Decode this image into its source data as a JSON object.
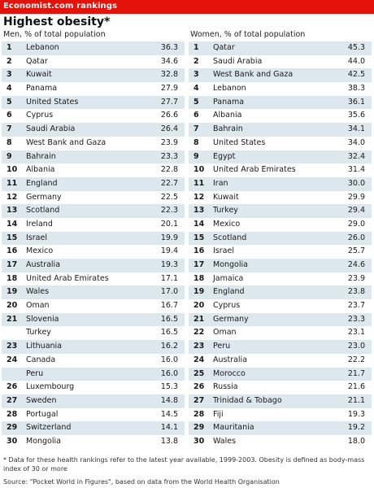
{
  "header": {
    "banner": "Economist.com rankings",
    "title": "Highest obesity*"
  },
  "men": {
    "subtitle": "Men, % of total population",
    "rows": [
      {
        "rank": "1",
        "country": "Lebanon",
        "value": "36.3"
      },
      {
        "rank": "2",
        "country": "Qatar",
        "value": "34.6"
      },
      {
        "rank": "3",
        "country": "Kuwait",
        "value": "32.8"
      },
      {
        "rank": "4",
        "country": "Panama",
        "value": "27.9"
      },
      {
        "rank": "5",
        "country": "United States",
        "value": "27.7"
      },
      {
        "rank": "6",
        "country": "Cyprus",
        "value": "26.6"
      },
      {
        "rank": "7",
        "country": "Saudi Arabia",
        "value": "26.4"
      },
      {
        "rank": "8",
        "country": "West Bank and Gaza",
        "value": "23.9"
      },
      {
        "rank": "9",
        "country": "Bahrain",
        "value": "23.3"
      },
      {
        "rank": "10",
        "country": "Albania",
        "value": "22.8"
      },
      {
        "rank": "11",
        "country": "England",
        "value": "22.7"
      },
      {
        "rank": "12",
        "country": "Germany",
        "value": "22.5"
      },
      {
        "rank": "13",
        "country": "Scotland",
        "value": "22.3"
      },
      {
        "rank": "14",
        "country": "Ireland",
        "value": "20.1"
      },
      {
        "rank": "15",
        "country": "Israel",
        "value": "19.9"
      },
      {
        "rank": "16",
        "country": "Mexico",
        "value": "19.4"
      },
      {
        "rank": "17",
        "country": "Australia",
        "value": "19.3"
      },
      {
        "rank": "18",
        "country": "United Arab Emirates",
        "value": "17.1"
      },
      {
        "rank": "19",
        "country": "Wales",
        "value": "17.0"
      },
      {
        "rank": "20",
        "country": "Oman",
        "value": "16.7"
      },
      {
        "rank": "21",
        "country": "Slovenia",
        "value": "16.5"
      },
      {
        "rank": "",
        "country": "Turkey",
        "value": "16.5"
      },
      {
        "rank": "23",
        "country": "Lithuania",
        "value": "16.2"
      },
      {
        "rank": "24",
        "country": "Canada",
        "value": "16.0"
      },
      {
        "rank": "",
        "country": "Peru",
        "value": "16.0"
      },
      {
        "rank": "26",
        "country": "Luxembourg",
        "value": "15.3"
      },
      {
        "rank": "27",
        "country": "Sweden",
        "value": "14.8"
      },
      {
        "rank": "28",
        "country": "Portugal",
        "value": "14.5"
      },
      {
        "rank": "29",
        "country": "Switzerland",
        "value": "14.1"
      },
      {
        "rank": "30",
        "country": "Mongolia",
        "value": "13.8"
      }
    ]
  },
  "women": {
    "subtitle": "Women, % of total population",
    "rows": [
      {
        "rank": "1",
        "country": "Qatar",
        "value": "45.3"
      },
      {
        "rank": "2",
        "country": "Saudi Arabia",
        "value": "44.0"
      },
      {
        "rank": "3",
        "country": "West Bank and Gaza",
        "value": "42.5"
      },
      {
        "rank": "4",
        "country": "Lebanon",
        "value": "38.3"
      },
      {
        "rank": "5",
        "country": "Panama",
        "value": "36.1"
      },
      {
        "rank": "6",
        "country": "Albania",
        "value": "35.6"
      },
      {
        "rank": "7",
        "country": "Bahrain",
        "value": "34.1"
      },
      {
        "rank": "8",
        "country": "United States",
        "value": "34.0"
      },
      {
        "rank": "9",
        "country": "Egypt",
        "value": "32.4"
      },
      {
        "rank": "10",
        "country": "United Arab Emirates",
        "value": "31.4"
      },
      {
        "rank": "11",
        "country": "Iran",
        "value": "30.0"
      },
      {
        "rank": "12",
        "country": "Kuwait",
        "value": "29.9"
      },
      {
        "rank": "13",
        "country": "Turkey",
        "value": "29.4"
      },
      {
        "rank": "14",
        "country": "Mexico",
        "value": "29.0"
      },
      {
        "rank": "15",
        "country": "Scotland",
        "value": "26.0"
      },
      {
        "rank": "16",
        "country": "Israel",
        "value": "25.7"
      },
      {
        "rank": "17",
        "country": "Mongolia",
        "value": "24.6"
      },
      {
        "rank": "18",
        "country": "Jamaica",
        "value": "23.9"
      },
      {
        "rank": "19",
        "country": "England",
        "value": "23.8"
      },
      {
        "rank": "20",
        "country": "Cyprus",
        "value": "23.7"
      },
      {
        "rank": "21",
        "country": "Germany",
        "value": "23.3"
      },
      {
        "rank": "22",
        "country": "Oman",
        "value": "23.1"
      },
      {
        "rank": "23",
        "country": "Peru",
        "value": "23.0"
      },
      {
        "rank": "24",
        "country": "Australia",
        "value": "22.2"
      },
      {
        "rank": "25",
        "country": "Morocco",
        "value": "21.7"
      },
      {
        "rank": "26",
        "country": "Russia",
        "value": "21.6"
      },
      {
        "rank": "27",
        "country": "Trinidad & Tobago",
        "value": "21.1"
      },
      {
        "rank": "28",
        "country": "Fiji",
        "value": "19.3"
      },
      {
        "rank": "29",
        "country": "Mauritania",
        "value": "19.2"
      },
      {
        "rank": "30",
        "country": "Wales",
        "value": "18.0"
      }
    ]
  },
  "footer": {
    "footnote": "* Data for these health rankings refer to the latest year available, 1999-2003. Obesity is defined as body-mass index of 30 or more",
    "source": "Source: \"Pocket World in Figures\", based on data from the World Health Organisation"
  },
  "colors": {
    "banner": "#e3120b",
    "row_shade": "#dde7ee"
  }
}
